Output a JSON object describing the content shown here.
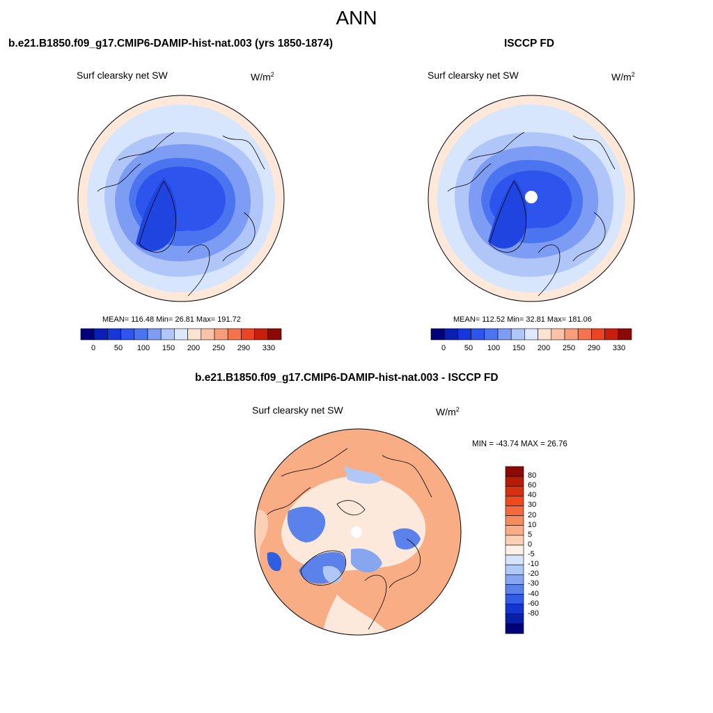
{
  "title": "ANN",
  "panels": [
    {
      "id": "model",
      "title": "b.e21.B1850.f09_g17.CMIP6-DAMIP-hist-nat.003 (yrs 1850-1874)",
      "variable": "Surf clearsky net SW",
      "units": "W/m",
      "units_sup": "2",
      "stats": "MEAN= 116.48  Min=  26.81  Max= 191.72",
      "colorbar": {
        "colors": [
          "#00007a",
          "#0a1fb4",
          "#1536d8",
          "#2d54ec",
          "#4a74f0",
          "#7d9cf4",
          "#b0c6f8",
          "#dce8fc",
          "#fde3d2",
          "#fbc2a8",
          "#f89c7c",
          "#f4724e",
          "#ea4424",
          "#c81e0e",
          "#8c0a05"
        ],
        "tick_labels": [
          "0",
          "50",
          "100",
          "150",
          "200",
          "250",
          "290",
          "330"
        ]
      }
    },
    {
      "id": "obs",
      "title": "ISCCP FD",
      "variable": "Surf clearsky net SW",
      "units": "W/m",
      "units_sup": "2",
      "stats": "MEAN= 112.52  Min=  32.81  Max= 181.06",
      "colorbar": {
        "colors": [
          "#00007a",
          "#0a1fb4",
          "#1536d8",
          "#2d54ec",
          "#4a74f0",
          "#7d9cf4",
          "#b0c6f8",
          "#dce8fc",
          "#fde3d2",
          "#fbc2a8",
          "#f89c7c",
          "#f4724e",
          "#ea4424",
          "#c81e0e",
          "#8c0a05"
        ],
        "tick_labels": [
          "0",
          "50",
          "100",
          "150",
          "200",
          "250",
          "290",
          "330"
        ]
      }
    }
  ],
  "difference": {
    "title": "b.e21.B1850.f09_g17.CMIP6-DAMIP-hist-nat.003 - ISCCP FD",
    "variable": "Surf clearsky net SW",
    "units": "W/m",
    "units_sup": "2",
    "stats": "MIN = -43.74 MAX =  26.76",
    "colorbar": {
      "colors": [
        "#8c0a05",
        "#b51c08",
        "#d73010",
        "#ee4a1e",
        "#f46a3e",
        "#f68c5e",
        "#f8ad84",
        "#fbd0b4",
        "#fdf0e6",
        "#d6e4fb",
        "#b0c8f6",
        "#86a6f0",
        "#5a82ea",
        "#2f5ee4",
        "#1436d0",
        "#0820a6",
        "#00007a"
      ],
      "tick_labels": [
        "80",
        "60",
        "40",
        "30",
        "20",
        "10",
        "5",
        "0",
        "-5",
        "-10",
        "-20",
        "-30",
        "-40",
        "-60",
        "-80"
      ]
    }
  },
  "colors": {
    "ring_light_blue": "#d7e6fc",
    "ring_salmon": "#fde8da",
    "mid_blue": "#6d91ee",
    "deep_blue": "#1f45e0",
    "diff_salmon": "#f7a880",
    "diff_light": "#fde9dc",
    "diff_blue": "#4a6fea",
    "coast": "#000000"
  }
}
